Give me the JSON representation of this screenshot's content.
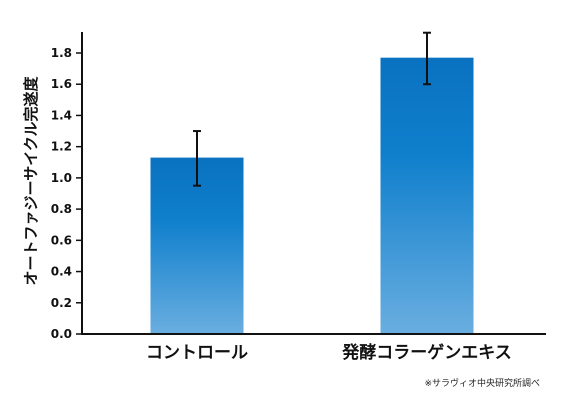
{
  "chart_data": {
    "type": "bar",
    "categories": [
      "コントロール",
      "発酵コラーゲンエキス"
    ],
    "values": [
      1.13,
      1.77
    ],
    "error_low": [
      0.95,
      1.6
    ],
    "error_high": [
      1.3,
      1.93
    ],
    "ylabel": "オートファジーサイクル完遂度",
    "ylim": [
      0,
      1.9
    ],
    "yticks": [
      0.0,
      0.2,
      0.4,
      0.6,
      0.8,
      1.0,
      1.2,
      1.4,
      1.6,
      1.8
    ],
    "ytick_labels": [
      "0.0",
      "0.2",
      "0.4",
      "0.6",
      "0.8",
      "1.0",
      "1.2",
      "1.4",
      "1.6",
      "1.8"
    ],
    "grid": false,
    "bar_color_top": "#0a72c0",
    "bar_color_bottom": "#6aaee0",
    "errorbar_color": "#111111"
  },
  "footnote": "※サラヴィオ中央研究所調べ"
}
